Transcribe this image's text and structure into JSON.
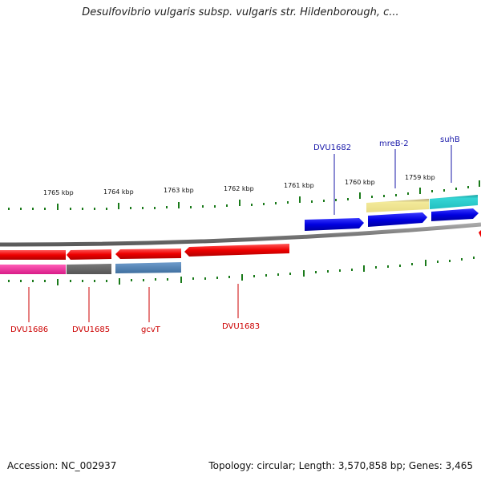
{
  "header": {
    "title": "Desulfovibrio vulgaris subsp. vulgaris str. Hildenborough, c..."
  },
  "footer": {
    "accession": "Accession: NC_002937",
    "summary": "Topology: circular; Length: 3,570,858 bp; Genes: 3,465"
  },
  "scale_labels": [
    "1765 kbp",
    "1764 kbp",
    "1763 kbp",
    "1762 kbp",
    "1761 kbp",
    "1760 kbp",
    "1759 kbp"
  ],
  "genes": {
    "forward": [
      "DVU1682",
      "mreB-2",
      "suhB"
    ],
    "reverse": [
      "DVU1686",
      "DVU1685",
      "gcvT",
      "DVU1683"
    ]
  },
  "colors": {
    "forward_label": "#1a1aaa",
    "reverse_label": "#cc0000",
    "forward_gene": "#0000dd",
    "reverse_gene": "#ee0000",
    "backbone": "#808080",
    "tick": "#1a7a1a"
  }
}
